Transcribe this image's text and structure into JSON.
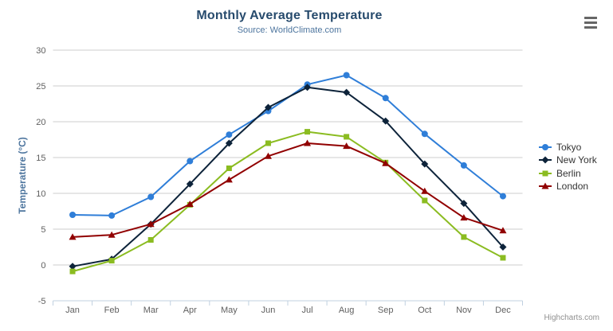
{
  "credits": "Highcharts.com",
  "export_menu": {
    "icon": "hamburger-icon",
    "tooltip": "Chart context menu"
  },
  "chart_data": {
    "type": "line",
    "title": "Monthly Average Temperature",
    "subtitle": "Source: WorldClimate.com",
    "categories": [
      "Jan",
      "Feb",
      "Mar",
      "Apr",
      "May",
      "Jun",
      "Jul",
      "Aug",
      "Sep",
      "Oct",
      "Nov",
      "Dec"
    ],
    "series": [
      {
        "name": "Tokyo",
        "color": "#2f7ed8",
        "marker": "circle",
        "values": [
          7.0,
          6.9,
          9.5,
          14.5,
          18.2,
          21.5,
          25.2,
          26.5,
          23.3,
          18.3,
          13.9,
          9.6
        ]
      },
      {
        "name": "New York",
        "color": "#0d233a",
        "marker": "diamond",
        "values": [
          -0.2,
          0.8,
          5.7,
          11.3,
          17.0,
          22.0,
          24.8,
          24.1,
          20.1,
          14.1,
          8.6,
          2.5
        ]
      },
      {
        "name": "Berlin",
        "color": "#8bbc21",
        "marker": "square",
        "values": [
          -0.9,
          0.6,
          3.5,
          8.4,
          13.5,
          17.0,
          18.6,
          17.9,
          14.3,
          9.0,
          3.9,
          1.0
        ]
      },
      {
        "name": "London",
        "color": "#910000",
        "marker": "triangle",
        "values": [
          3.9,
          4.2,
          5.7,
          8.5,
          11.9,
          15.2,
          17.0,
          16.6,
          14.2,
          10.3,
          6.6,
          4.8
        ]
      }
    ],
    "xlabel": "",
    "ylabel": "Temperature (°C)",
    "ylim": [
      -5,
      30
    ],
    "yticks": [
      -5,
      0,
      5,
      10,
      15,
      20,
      25,
      30
    ],
    "grid": true,
    "legend_position": "right",
    "tick_placement": "between",
    "axis_colors": {
      "grid_line": "#cccccc",
      "axis_line": "#c0d0e0",
      "tick": "#c0d0e0",
      "label": "#606060",
      "axis_title": "#4d759e"
    }
  }
}
